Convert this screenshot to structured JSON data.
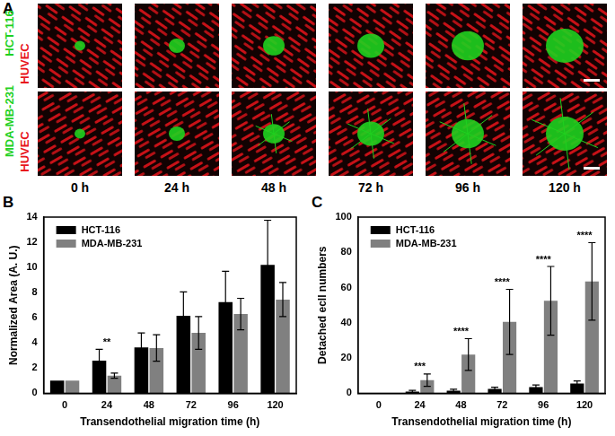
{
  "figure": {
    "panel": "A",
    "rows": [
      {
        "cell_line": "HCT-116",
        "cell_line_color": "#1fd11f",
        "endothelium": "HUVEC",
        "endothelium_color": "#e8141b"
      },
      {
        "cell_line": "MDA-MB-231",
        "cell_line_color": "#1fd11f",
        "endothelium": "HUVEC",
        "endothelium_color": "#e8141b"
      }
    ],
    "columns": [
      "0 h",
      "24 h",
      "48 h",
      "72 h",
      "96 h",
      "120 h"
    ]
  },
  "chart_data": [
    {
      "type": "bar",
      "panel": "B",
      "x_label": "Transendothelial migration time (h)",
      "y_label": "Normalized Area (A. U.)",
      "categories": [
        "0",
        "24",
        "48",
        "72",
        "96",
        "120"
      ],
      "series": [
        {
          "name": "HCT-116",
          "color": "#000000",
          "values": [
            1,
            2.6,
            3.65,
            6.15,
            7.25,
            10.2
          ],
          "errors": [
            0,
            0.9,
            1.15,
            1.9,
            2.45,
            3.55
          ]
        },
        {
          "name": "MDA-MB-231",
          "color": "#808080",
          "values": [
            1,
            1.4,
            3.6,
            4.8,
            6.3,
            7.45
          ],
          "errors": [
            0,
            0.2,
            1.05,
            1.3,
            1.25,
            1.35
          ]
        }
      ],
      "ylim": [
        0,
        14
      ],
      "yticks": [
        0,
        2,
        4,
        6,
        8,
        10,
        12,
        14
      ],
      "legend": "upper left",
      "grid": false,
      "annotations": [
        {
          "category": "24",
          "text": "**"
        }
      ]
    },
    {
      "type": "bar",
      "panel": "C",
      "x_label": "Transendothelial migration time (h)",
      "y_label": "Detached ecll numbers",
      "categories": [
        "0",
        "24",
        "48",
        "72",
        "96",
        "120"
      ],
      "series": [
        {
          "name": "HCT-116",
          "color": "#000000",
          "values": [
            0,
            1,
            1.5,
            2.5,
            3.5,
            5.5
          ],
          "errors": [
            0,
            0.7,
            0.8,
            1,
            1.2,
            1.5
          ]
        },
        {
          "name": "MDA-MB-231",
          "color": "#808080",
          "values": [
            0,
            7.5,
            22,
            40.5,
            52.5,
            63.5
          ],
          "errors": [
            0,
            3.5,
            9,
            18.5,
            19.5,
            22
          ]
        }
      ],
      "ylim": [
        0,
        100
      ],
      "yticks": [
        0,
        20,
        40,
        60,
        80,
        100
      ],
      "legend": "upper left",
      "grid": false,
      "annotations": [
        {
          "category": "24",
          "text": "***"
        },
        {
          "category": "48",
          "text": "****"
        },
        {
          "category": "72",
          "text": "****"
        },
        {
          "category": "96",
          "text": "****"
        },
        {
          "category": "120",
          "text": "****"
        }
      ]
    }
  ]
}
